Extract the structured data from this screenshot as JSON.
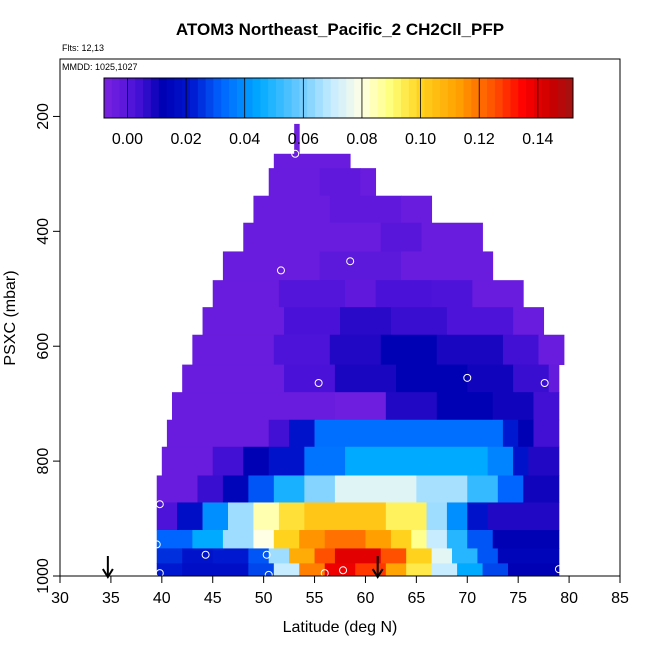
{
  "chart_data": {
    "type": "heatmap",
    "title": "ATOM3 Northeast_Pacific_2 CH2Cll_PFP",
    "subtitle_flights": "Flts: 12,13",
    "subtitle_dates": "MMDD: 1025,1027",
    "xlabel": "Latitude (deg N)",
    "ylabel": "PSXC (mbar)",
    "xlim": [
      30,
      85
    ],
    "ylim": [
      1000,
      100
    ],
    "x_ticks": [
      30,
      35,
      40,
      45,
      50,
      55,
      60,
      65,
      70,
      75,
      80,
      85
    ],
    "x_tick_labels": [
      "30",
      "35",
      "40",
      "45",
      "50",
      "55",
      "60",
      "65",
      "70",
      "75",
      "80",
      "85"
    ],
    "y_ticks": [
      200,
      400,
      600,
      800,
      1000
    ],
    "y_tick_labels": [
      "200",
      "400",
      "600",
      "800",
      "1000"
    ],
    "colorbar": {
      "range": [
        -0.008,
        0.152
      ],
      "ticks": [
        0.0,
        0.02,
        0.04,
        0.06,
        0.08,
        0.1,
        0.12,
        0.14
      ],
      "tick_labels": [
        "0.00",
        "0.02",
        "0.04",
        "0.06",
        "0.08",
        "0.10",
        "0.12",
        "0.14"
      ],
      "stops": [
        {
          "v": -0.008,
          "c": "#7b22e0"
        },
        {
          "v": 0.003,
          "c": "#4a12d8"
        },
        {
          "v": 0.012,
          "c": "#0000b4"
        },
        {
          "v": 0.022,
          "c": "#0018d0"
        },
        {
          "v": 0.032,
          "c": "#0064ff"
        },
        {
          "v": 0.045,
          "c": "#00aaff"
        },
        {
          "v": 0.058,
          "c": "#64c8ff"
        },
        {
          "v": 0.07,
          "c": "#c8ecff"
        },
        {
          "v": 0.08,
          "c": "#ffffe6"
        },
        {
          "v": 0.09,
          "c": "#ffff78"
        },
        {
          "v": 0.1,
          "c": "#ffd21e"
        },
        {
          "v": 0.113,
          "c": "#ffa000"
        },
        {
          "v": 0.125,
          "c": "#ff5000"
        },
        {
          "v": 0.135,
          "c": "#ff0000"
        },
        {
          "v": 0.145,
          "c": "#c80000"
        },
        {
          "v": 0.152,
          "c": "#a01414"
        }
      ]
    },
    "rows": [
      {
        "p0": 213,
        "p1": 265,
        "segs": [
          {
            "x0": 53.0,
            "x1": 53.5,
            "v": -0.005
          }
        ]
      },
      {
        "p0": 265,
        "p1": 290,
        "segs": [
          {
            "x0": 51.0,
            "x1": 58.5,
            "v": -0.004
          }
        ]
      },
      {
        "p0": 290,
        "p1": 338,
        "segs": [
          {
            "x0": 50.5,
            "x1": 55.5,
            "v": -0.004
          },
          {
            "x0": 55.5,
            "x1": 59.5,
            "v": -0.002
          },
          {
            "x0": 59.5,
            "x1": 61.0,
            "v": -0.004
          }
        ]
      },
      {
        "p0": 338,
        "p1": 385,
        "segs": [
          {
            "x0": 49.0,
            "x1": 56.5,
            "v": -0.004
          },
          {
            "x0": 56.5,
            "x1": 63.5,
            "v": -0.002
          },
          {
            "x0": 63.5,
            "x1": 66.5,
            "v": -0.004
          }
        ]
      },
      {
        "p0": 385,
        "p1": 435,
        "segs": [
          {
            "x0": 48.0,
            "x1": 61.5,
            "v": -0.004
          },
          {
            "x0": 61.5,
            "x1": 65.5,
            "v": 0.0
          },
          {
            "x0": 65.5,
            "x1": 71.5,
            "v": -0.004
          }
        ]
      },
      {
        "p0": 435,
        "p1": 485,
        "segs": [
          {
            "x0": 46.0,
            "x1": 55.5,
            "v": -0.004
          },
          {
            "x0": 55.5,
            "x1": 63.5,
            "v": -0.001
          },
          {
            "x0": 63.5,
            "x1": 72.5,
            "v": -0.004
          }
        ]
      },
      {
        "p0": 485,
        "p1": 532,
        "segs": [
          {
            "x0": 45.0,
            "x1": 51.5,
            "v": -0.004
          },
          {
            "x0": 51.5,
            "x1": 58.0,
            "v": 0.001
          },
          {
            "x0": 58.0,
            "x1": 61.0,
            "v": -0.002
          },
          {
            "x0": 61.0,
            "x1": 66.5,
            "v": 0.003
          },
          {
            "x0": 66.5,
            "x1": 70.5,
            "v": 0.002
          },
          {
            "x0": 70.5,
            "x1": 75.5,
            "v": -0.004
          }
        ]
      },
      {
        "p0": 532,
        "p1": 580,
        "segs": [
          {
            "x0": 44.0,
            "x1": 52.0,
            "v": -0.004
          },
          {
            "x0": 52.0,
            "x1": 57.5,
            "v": 0.003
          },
          {
            "x0": 57.5,
            "x1": 62.5,
            "v": 0.007
          },
          {
            "x0": 62.5,
            "x1": 68.0,
            "v": 0.005
          },
          {
            "x0": 68.0,
            "x1": 74.5,
            "v": 0.002
          },
          {
            "x0": 74.5,
            "x1": 77.5,
            "v": -0.004
          }
        ]
      },
      {
        "p0": 580,
        "p1": 632,
        "segs": [
          {
            "x0": 43.0,
            "x1": 51.0,
            "v": -0.004
          },
          {
            "x0": 51.0,
            "x1": 56.5,
            "v": 0.002
          },
          {
            "x0": 56.5,
            "x1": 61.5,
            "v": 0.008
          },
          {
            "x0": 61.5,
            "x1": 67.0,
            "v": 0.012
          },
          {
            "x0": 67.0,
            "x1": 73.5,
            "v": 0.009
          },
          {
            "x0": 73.5,
            "x1": 77.0,
            "v": 0.004
          },
          {
            "x0": 77.0,
            "x1": 79.5,
            "v": -0.004
          }
        ]
      },
      {
        "p0": 632,
        "p1": 680,
        "segs": [
          {
            "x0": 42.0,
            "x1": 52.0,
            "v": -0.004
          },
          {
            "x0": 52.0,
            "x1": 57.0,
            "v": 0.003
          },
          {
            "x0": 57.0,
            "x1": 63.0,
            "v": 0.009
          },
          {
            "x0": 63.0,
            "x1": 70.0,
            "v": 0.012
          },
          {
            "x0": 70.0,
            "x1": 74.5,
            "v": 0.01
          },
          {
            "x0": 74.5,
            "x1": 78.0,
            "v": 0.005
          },
          {
            "x0": 78.0,
            "x1": 79.0,
            "v": -0.003
          }
        ]
      },
      {
        "p0": 680,
        "p1": 728,
        "segs": [
          {
            "x0": 41.0,
            "x1": 57.0,
            "v": -0.004
          },
          {
            "x0": 57.0,
            "x1": 62.0,
            "v": -0.005
          },
          {
            "x0": 62.0,
            "x1": 67.0,
            "v": 0.008
          },
          {
            "x0": 67.0,
            "x1": 72.5,
            "v": 0.012
          },
          {
            "x0": 72.5,
            "x1": 76.5,
            "v": 0.01
          },
          {
            "x0": 76.5,
            "x1": 79.0,
            "v": 0.004
          }
        ]
      },
      {
        "p0": 728,
        "p1": 775,
        "segs": [
          {
            "x0": 40.5,
            "x1": 50.5,
            "v": -0.004
          },
          {
            "x0": 50.5,
            "x1": 52.5,
            "v": 0.004
          },
          {
            "x0": 52.5,
            "x1": 55.0,
            "v": 0.02
          },
          {
            "x0": 55.0,
            "x1": 73.5,
            "v": 0.034
          },
          {
            "x0": 73.5,
            "x1": 75.0,
            "v": 0.022
          },
          {
            "x0": 75.0,
            "x1": 76.5,
            "v": 0.012
          },
          {
            "x0": 76.5,
            "x1": 79.0,
            "v": 0.004
          }
        ]
      },
      {
        "p0": 775,
        "p1": 825,
        "segs": [
          {
            "x0": 40.0,
            "x1": 45.0,
            "v": -0.004
          },
          {
            "x0": 45.0,
            "x1": 48.0,
            "v": 0.004
          },
          {
            "x0": 48.0,
            "x1": 50.5,
            "v": 0.012
          },
          {
            "x0": 50.5,
            "x1": 54.0,
            "v": 0.02
          },
          {
            "x0": 54.0,
            "x1": 58.0,
            "v": 0.035
          },
          {
            "x0": 58.0,
            "x1": 72.0,
            "v": 0.045
          },
          {
            "x0": 72.0,
            "x1": 74.5,
            "v": 0.038
          },
          {
            "x0": 74.5,
            "x1": 76.0,
            "v": 0.02
          },
          {
            "x0": 76.0,
            "x1": 79.0,
            "v": 0.008
          }
        ]
      },
      {
        "p0": 825,
        "p1": 872,
        "segs": [
          {
            "x0": 39.5,
            "x1": 43.5,
            "v": -0.004
          },
          {
            "x0": 43.5,
            "x1": 46.0,
            "v": 0.005
          },
          {
            "x0": 46.0,
            "x1": 48.5,
            "v": 0.014
          },
          {
            "x0": 48.5,
            "x1": 51.0,
            "v": 0.03
          },
          {
            "x0": 51.0,
            "x1": 54.0,
            "v": 0.048
          },
          {
            "x0": 54.0,
            "x1": 57.0,
            "v": 0.062
          },
          {
            "x0": 57.0,
            "x1": 65.0,
            "v": 0.074
          },
          {
            "x0": 65.0,
            "x1": 70.0,
            "v": 0.066
          },
          {
            "x0": 70.0,
            "x1": 73.0,
            "v": 0.052
          },
          {
            "x0": 73.0,
            "x1": 75.5,
            "v": 0.032
          },
          {
            "x0": 75.5,
            "x1": 79.0,
            "v": 0.01
          }
        ]
      },
      {
        "p0": 872,
        "p1": 920,
        "segs": [
          {
            "x0": 39.5,
            "x1": 41.5,
            "v": 0.002
          },
          {
            "x0": 41.5,
            "x1": 44.0,
            "v": 0.018
          },
          {
            "x0": 44.0,
            "x1": 46.5,
            "v": 0.04
          },
          {
            "x0": 46.5,
            "x1": 49.0,
            "v": 0.065
          },
          {
            "x0": 49.0,
            "x1": 51.5,
            "v": 0.085
          },
          {
            "x0": 51.5,
            "x1": 54.0,
            "v": 0.097
          },
          {
            "x0": 54.0,
            "x1": 62.0,
            "v": 0.103
          },
          {
            "x0": 62.0,
            "x1": 66.0,
            "v": 0.093
          },
          {
            "x0": 66.0,
            "x1": 68.0,
            "v": 0.065
          },
          {
            "x0": 68.0,
            "x1": 70.0,
            "v": 0.04
          },
          {
            "x0": 70.0,
            "x1": 72.0,
            "v": 0.02
          },
          {
            "x0": 72.0,
            "x1": 79.0,
            "v": 0.008
          }
        ]
      },
      {
        "p0": 920,
        "p1": 952,
        "segs": [
          {
            "x0": 39.5,
            "x1": 43.0,
            "v": 0.032
          },
          {
            "x0": 43.0,
            "x1": 46.0,
            "v": 0.045
          },
          {
            "x0": 46.0,
            "x1": 49.0,
            "v": 0.065
          },
          {
            "x0": 49.0,
            "x1": 51.0,
            "v": 0.08
          },
          {
            "x0": 51.0,
            "x1": 53.5,
            "v": 0.1
          },
          {
            "x0": 53.5,
            "x1": 56.0,
            "v": 0.115
          },
          {
            "x0": 56.0,
            "x1": 60.0,
            "v": 0.12
          },
          {
            "x0": 60.0,
            "x1": 62.5,
            "v": 0.113
          },
          {
            "x0": 62.5,
            "x1": 64.5,
            "v": 0.1
          },
          {
            "x0": 64.5,
            "x1": 66.0,
            "v": 0.088
          },
          {
            "x0": 66.0,
            "x1": 68.0,
            "v": 0.07
          },
          {
            "x0": 68.0,
            "x1": 70.0,
            "v": 0.05
          },
          {
            "x0": 70.0,
            "x1": 72.5,
            "v": 0.03
          },
          {
            "x0": 72.5,
            "x1": 79.0,
            "v": 0.012
          }
        ]
      },
      {
        "p0": 952,
        "p1": 978,
        "segs": [
          {
            "x0": 39.5,
            "x1": 42.0,
            "v": 0.025
          },
          {
            "x0": 42.0,
            "x1": 45.0,
            "v": 0.02
          },
          {
            "x0": 45.0,
            "x1": 48.5,
            "v": 0.022
          },
          {
            "x0": 48.5,
            "x1": 50.5,
            "v": 0.03
          },
          {
            "x0": 50.5,
            "x1": 52.5,
            "v": 0.065
          },
          {
            "x0": 52.5,
            "x1": 55.0,
            "v": 0.11
          },
          {
            "x0": 55.0,
            "x1": 57.0,
            "v": 0.125
          },
          {
            "x0": 57.0,
            "x1": 61.5,
            "v": 0.14
          },
          {
            "x0": 61.5,
            "x1": 64.0,
            "v": 0.125
          },
          {
            "x0": 64.0,
            "x1": 66.5,
            "v": 0.1
          },
          {
            "x0": 66.5,
            "x1": 68.5,
            "v": 0.075
          },
          {
            "x0": 68.5,
            "x1": 71.0,
            "v": 0.05
          },
          {
            "x0": 71.0,
            "x1": 73.0,
            "v": 0.03
          },
          {
            "x0": 73.0,
            "x1": 79.0,
            "v": 0.014
          }
        ]
      },
      {
        "p0": 978,
        "p1": 1000,
        "segs": [
          {
            "x0": 39.5,
            "x1": 42.0,
            "v": 0.022
          },
          {
            "x0": 42.0,
            "x1": 48.5,
            "v": 0.018
          },
          {
            "x0": 48.5,
            "x1": 51.0,
            "v": 0.028
          },
          {
            "x0": 51.0,
            "x1": 53.5,
            "v": 0.07
          },
          {
            "x0": 53.5,
            "x1": 56.0,
            "v": 0.118
          },
          {
            "x0": 56.0,
            "x1": 59.0,
            "v": 0.138
          },
          {
            "x0": 59.0,
            "x1": 62.0,
            "v": 0.128
          },
          {
            "x0": 62.0,
            "x1": 64.0,
            "v": 0.112
          },
          {
            "x0": 64.0,
            "x1": 66.5,
            "v": 0.095
          },
          {
            "x0": 66.5,
            "x1": 69.0,
            "v": 0.07
          },
          {
            "x0": 69.0,
            "x1": 71.5,
            "v": 0.045
          },
          {
            "x0": 71.5,
            "x1": 74.0,
            "v": 0.028
          },
          {
            "x0": 74.0,
            "x1": 79.0,
            "v": 0.012
          }
        ]
      }
    ],
    "sample_points": [
      {
        "lat": 53.1,
        "p": 265
      },
      {
        "lat": 51.7,
        "p": 468
      },
      {
        "lat": 58.5,
        "p": 452
      },
      {
        "lat": 55.4,
        "p": 664
      },
      {
        "lat": 70.0,
        "p": 655
      },
      {
        "lat": 77.6,
        "p": 664
      },
      {
        "lat": 79.8,
        "p": 563
      },
      {
        "lat": 39.8,
        "p": 875
      },
      {
        "lat": 39.5,
        "p": 945
      },
      {
        "lat": 44.3,
        "p": 963
      },
      {
        "lat": 50.3,
        "p": 963
      },
      {
        "lat": 39.8,
        "p": 995
      },
      {
        "lat": 50.5,
        "p": 998
      },
      {
        "lat": 56.0,
        "p": 995
      },
      {
        "lat": 57.8,
        "p": 990
      },
      {
        "lat": 79.0,
        "p": 988
      }
    ],
    "arrows": [
      {
        "lat": 34.7
      },
      {
        "lat": 61.2
      }
    ]
  }
}
